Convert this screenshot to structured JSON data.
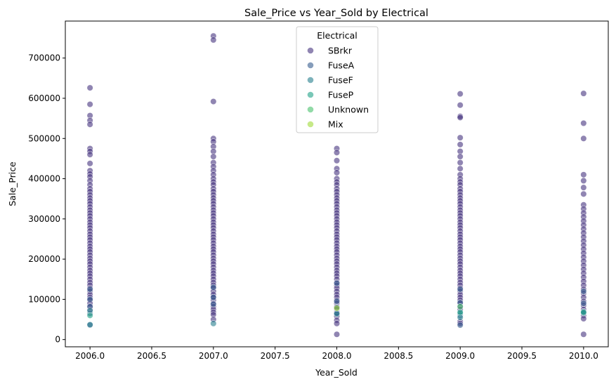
{
  "chart_data": {
    "type": "scatter",
    "title": "Sale_Price vs Year_Sold by Electrical",
    "xlabel": "Year_Sold",
    "ylabel": "Sale_Price",
    "xlim": [
      2005.8,
      2010.2
    ],
    "ylim": [
      -18000,
      792000
    ],
    "x_ticks": [
      2006.0,
      2006.5,
      2007.0,
      2007.5,
      2008.0,
      2008.5,
      2009.0,
      2009.5,
      2010.0
    ],
    "x_tick_labels": [
      "2006.0",
      "2006.5",
      "2007.0",
      "2007.5",
      "2008.0",
      "2008.5",
      "2009.0",
      "2009.5",
      "2010.0"
    ],
    "y_ticks": [
      0,
      100000,
      200000,
      300000,
      400000,
      500000,
      600000,
      700000
    ],
    "y_tick_labels": [
      "0",
      "100000",
      "200000",
      "300000",
      "400000",
      "500000",
      "600000",
      "700000"
    ],
    "grid": false,
    "legend": {
      "title": "Electrical",
      "placement": "top-center"
    },
    "series": [
      {
        "name": "SBrkr",
        "color": "#46337e",
        "points": [
          [
            2006,
            626000
          ],
          [
            2006,
            585000
          ],
          [
            2006,
            557000
          ],
          [
            2006,
            545000
          ],
          [
            2006,
            535000
          ],
          [
            2006,
            475000
          ],
          [
            2006,
            468000
          ],
          [
            2006,
            460000
          ],
          [
            2006,
            438000
          ],
          [
            2006,
            420000
          ],
          [
            2006,
            412000
          ],
          [
            2006,
            405000
          ],
          [
            2006,
            395000
          ],
          [
            2006,
            385000
          ],
          [
            2006,
            375000
          ],
          [
            2006,
            368000
          ],
          [
            2006,
            360000
          ],
          [
            2006,
            352000
          ],
          [
            2006,
            345000
          ],
          [
            2006,
            338000
          ],
          [
            2006,
            330000
          ],
          [
            2006,
            322000
          ],
          [
            2006,
            315000
          ],
          [
            2006,
            308000
          ],
          [
            2006,
            300000
          ],
          [
            2006,
            292000
          ],
          [
            2006,
            285000
          ],
          [
            2006,
            278000
          ],
          [
            2006,
            270000
          ],
          [
            2006,
            262000
          ],
          [
            2006,
            255000
          ],
          [
            2006,
            248000
          ],
          [
            2006,
            240000
          ],
          [
            2006,
            232000
          ],
          [
            2006,
            225000
          ],
          [
            2006,
            218000
          ],
          [
            2006,
            210000
          ],
          [
            2006,
            202000
          ],
          [
            2006,
            195000
          ],
          [
            2006,
            188000
          ],
          [
            2006,
            180000
          ],
          [
            2006,
            172000
          ],
          [
            2006,
            165000
          ],
          [
            2006,
            158000
          ],
          [
            2006,
            150000
          ],
          [
            2006,
            142000
          ],
          [
            2006,
            135000
          ],
          [
            2006,
            128000
          ],
          [
            2006,
            120000
          ],
          [
            2006,
            112000
          ],
          [
            2006,
            105000
          ],
          [
            2006,
            98000
          ],
          [
            2006,
            90000
          ],
          [
            2006,
            82000
          ],
          [
            2006,
            75000
          ],
          [
            2007,
            755000
          ],
          [
            2007,
            745000
          ],
          [
            2007,
            592000
          ],
          [
            2007,
            500000
          ],
          [
            2007,
            492000
          ],
          [
            2007,
            480000
          ],
          [
            2007,
            468000
          ],
          [
            2007,
            455000
          ],
          [
            2007,
            440000
          ],
          [
            2007,
            430000
          ],
          [
            2007,
            420000
          ],
          [
            2007,
            410000
          ],
          [
            2007,
            400000
          ],
          [
            2007,
            392000
          ],
          [
            2007,
            385000
          ],
          [
            2007,
            375000
          ],
          [
            2007,
            368000
          ],
          [
            2007,
            360000
          ],
          [
            2007,
            352000
          ],
          [
            2007,
            345000
          ],
          [
            2007,
            338000
          ],
          [
            2007,
            330000
          ],
          [
            2007,
            322000
          ],
          [
            2007,
            315000
          ],
          [
            2007,
            308000
          ],
          [
            2007,
            300000
          ],
          [
            2007,
            292000
          ],
          [
            2007,
            285000
          ],
          [
            2007,
            278000
          ],
          [
            2007,
            270000
          ],
          [
            2007,
            262000
          ],
          [
            2007,
            255000
          ],
          [
            2007,
            248000
          ],
          [
            2007,
            240000
          ],
          [
            2007,
            232000
          ],
          [
            2007,
            225000
          ],
          [
            2007,
            218000
          ],
          [
            2007,
            210000
          ],
          [
            2007,
            202000
          ],
          [
            2007,
            195000
          ],
          [
            2007,
            188000
          ],
          [
            2007,
            180000
          ],
          [
            2007,
            172000
          ],
          [
            2007,
            165000
          ],
          [
            2007,
            158000
          ],
          [
            2007,
            150000
          ],
          [
            2007,
            142000
          ],
          [
            2007,
            135000
          ],
          [
            2007,
            128000
          ],
          [
            2007,
            120000
          ],
          [
            2007,
            112000
          ],
          [
            2007,
            105000
          ],
          [
            2007,
            98000
          ],
          [
            2007,
            90000
          ],
          [
            2007,
            82000
          ],
          [
            2007,
            75000
          ],
          [
            2007,
            68000
          ],
          [
            2007,
            62000
          ],
          [
            2007,
            50000
          ],
          [
            2008,
            475000
          ],
          [
            2008,
            465000
          ],
          [
            2008,
            445000
          ],
          [
            2008,
            425000
          ],
          [
            2008,
            415000
          ],
          [
            2008,
            400000
          ],
          [
            2008,
            392000
          ],
          [
            2008,
            385000
          ],
          [
            2008,
            375000
          ],
          [
            2008,
            368000
          ],
          [
            2008,
            360000
          ],
          [
            2008,
            352000
          ],
          [
            2008,
            345000
          ],
          [
            2008,
            338000
          ],
          [
            2008,
            330000
          ],
          [
            2008,
            322000
          ],
          [
            2008,
            315000
          ],
          [
            2008,
            308000
          ],
          [
            2008,
            300000
          ],
          [
            2008,
            292000
          ],
          [
            2008,
            285000
          ],
          [
            2008,
            278000
          ],
          [
            2008,
            270000
          ],
          [
            2008,
            262000
          ],
          [
            2008,
            255000
          ],
          [
            2008,
            248000
          ],
          [
            2008,
            240000
          ],
          [
            2008,
            232000
          ],
          [
            2008,
            225000
          ],
          [
            2008,
            218000
          ],
          [
            2008,
            210000
          ],
          [
            2008,
            202000
          ],
          [
            2008,
            195000
          ],
          [
            2008,
            188000
          ],
          [
            2008,
            180000
          ],
          [
            2008,
            172000
          ],
          [
            2008,
            165000
          ],
          [
            2008,
            158000
          ],
          [
            2008,
            150000
          ],
          [
            2008,
            142000
          ],
          [
            2008,
            135000
          ],
          [
            2008,
            128000
          ],
          [
            2008,
            120000
          ],
          [
            2008,
            112000
          ],
          [
            2008,
            105000
          ],
          [
            2008,
            98000
          ],
          [
            2008,
            90000
          ],
          [
            2008,
            82000
          ],
          [
            2008,
            75000
          ],
          [
            2008,
            68000
          ],
          [
            2008,
            58000
          ],
          [
            2008,
            48000
          ],
          [
            2008,
            40000
          ],
          [
            2008,
            13000
          ],
          [
            2009,
            611000
          ],
          [
            2009,
            583000
          ],
          [
            2009,
            555000
          ],
          [
            2009,
            552000
          ],
          [
            2009,
            502000
          ],
          [
            2009,
            485000
          ],
          [
            2009,
            468000
          ],
          [
            2009,
            455000
          ],
          [
            2009,
            440000
          ],
          [
            2009,
            425000
          ],
          [
            2009,
            410000
          ],
          [
            2009,
            400000
          ],
          [
            2009,
            392000
          ],
          [
            2009,
            385000
          ],
          [
            2009,
            375000
          ],
          [
            2009,
            368000
          ],
          [
            2009,
            360000
          ],
          [
            2009,
            352000
          ],
          [
            2009,
            345000
          ],
          [
            2009,
            338000
          ],
          [
            2009,
            330000
          ],
          [
            2009,
            322000
          ],
          [
            2009,
            315000
          ],
          [
            2009,
            308000
          ],
          [
            2009,
            300000
          ],
          [
            2009,
            292000
          ],
          [
            2009,
            285000
          ],
          [
            2009,
            278000
          ],
          [
            2009,
            270000
          ],
          [
            2009,
            262000
          ],
          [
            2009,
            255000
          ],
          [
            2009,
            248000
          ],
          [
            2009,
            240000
          ],
          [
            2009,
            232000
          ],
          [
            2009,
            225000
          ],
          [
            2009,
            218000
          ],
          [
            2009,
            210000
          ],
          [
            2009,
            202000
          ],
          [
            2009,
            195000
          ],
          [
            2009,
            188000
          ],
          [
            2009,
            180000
          ],
          [
            2009,
            172000
          ],
          [
            2009,
            165000
          ],
          [
            2009,
            158000
          ],
          [
            2009,
            150000
          ],
          [
            2009,
            142000
          ],
          [
            2009,
            135000
          ],
          [
            2009,
            128000
          ],
          [
            2009,
            120000
          ],
          [
            2009,
            112000
          ],
          [
            2009,
            105000
          ],
          [
            2009,
            98000
          ],
          [
            2009,
            90000
          ],
          [
            2009,
            82000
          ],
          [
            2009,
            75000
          ],
          [
            2009,
            45000
          ],
          [
            2009,
            40000
          ],
          [
            2010,
            612000
          ],
          [
            2010,
            538000
          ],
          [
            2010,
            500000
          ],
          [
            2010,
            410000
          ],
          [
            2010,
            395000
          ],
          [
            2010,
            378000
          ],
          [
            2010,
            362000
          ],
          [
            2010,
            335000
          ],
          [
            2010,
            325000
          ],
          [
            2010,
            315000
          ],
          [
            2010,
            305000
          ],
          [
            2010,
            295000
          ],
          [
            2010,
            285000
          ],
          [
            2010,
            275000
          ],
          [
            2010,
            265000
          ],
          [
            2010,
            255000
          ],
          [
            2010,
            245000
          ],
          [
            2010,
            235000
          ],
          [
            2010,
            225000
          ],
          [
            2010,
            215000
          ],
          [
            2010,
            205000
          ],
          [
            2010,
            195000
          ],
          [
            2010,
            185000
          ],
          [
            2010,
            175000
          ],
          [
            2010,
            165000
          ],
          [
            2010,
            155000
          ],
          [
            2010,
            145000
          ],
          [
            2010,
            135000
          ],
          [
            2010,
            125000
          ],
          [
            2010,
            115000
          ],
          [
            2010,
            105000
          ],
          [
            2010,
            95000
          ],
          [
            2010,
            85000
          ],
          [
            2010,
            75000
          ],
          [
            2010,
            60000
          ],
          [
            2010,
            52000
          ],
          [
            2010,
            13000
          ]
        ]
      },
      {
        "name": "FuseA",
        "color": "#365c8d",
        "points": [
          [
            2006,
            125000
          ],
          [
            2006,
            100000
          ],
          [
            2006,
            82000
          ],
          [
            2006,
            65000
          ],
          [
            2006,
            36000
          ],
          [
            2007,
            130000
          ],
          [
            2007,
            105000
          ],
          [
            2007,
            88000
          ],
          [
            2008,
            140000
          ],
          [
            2008,
            95000
          ],
          [
            2008,
            80000
          ],
          [
            2008,
            66000
          ],
          [
            2009,
            125000
          ],
          [
            2009,
            92000
          ],
          [
            2009,
            60000
          ],
          [
            2009,
            36000
          ],
          [
            2010,
            120000
          ],
          [
            2010,
            90000
          ],
          [
            2010,
            70000
          ]
        ]
      },
      {
        "name": "FuseF",
        "color": "#277f8e",
        "points": [
          [
            2006,
            72000
          ],
          [
            2006,
            37000
          ],
          [
            2007,
            40000
          ],
          [
            2008,
            64000
          ],
          [
            2009,
            65000
          ],
          [
            2009,
            55000
          ],
          [
            2010,
            66000
          ]
        ]
      },
      {
        "name": "FuseP",
        "color": "#1fa187",
        "points": [
          [
            2006,
            60000
          ],
          [
            2009,
            68000
          ],
          [
            2010,
            68000
          ]
        ]
      },
      {
        "name": "Unknown",
        "color": "#4ac16d",
        "points": [
          [
            2009,
            82000
          ]
        ]
      },
      {
        "name": "Mix",
        "color": "#a0da39",
        "points": [
          [
            2008,
            78000
          ]
        ]
      }
    ]
  }
}
